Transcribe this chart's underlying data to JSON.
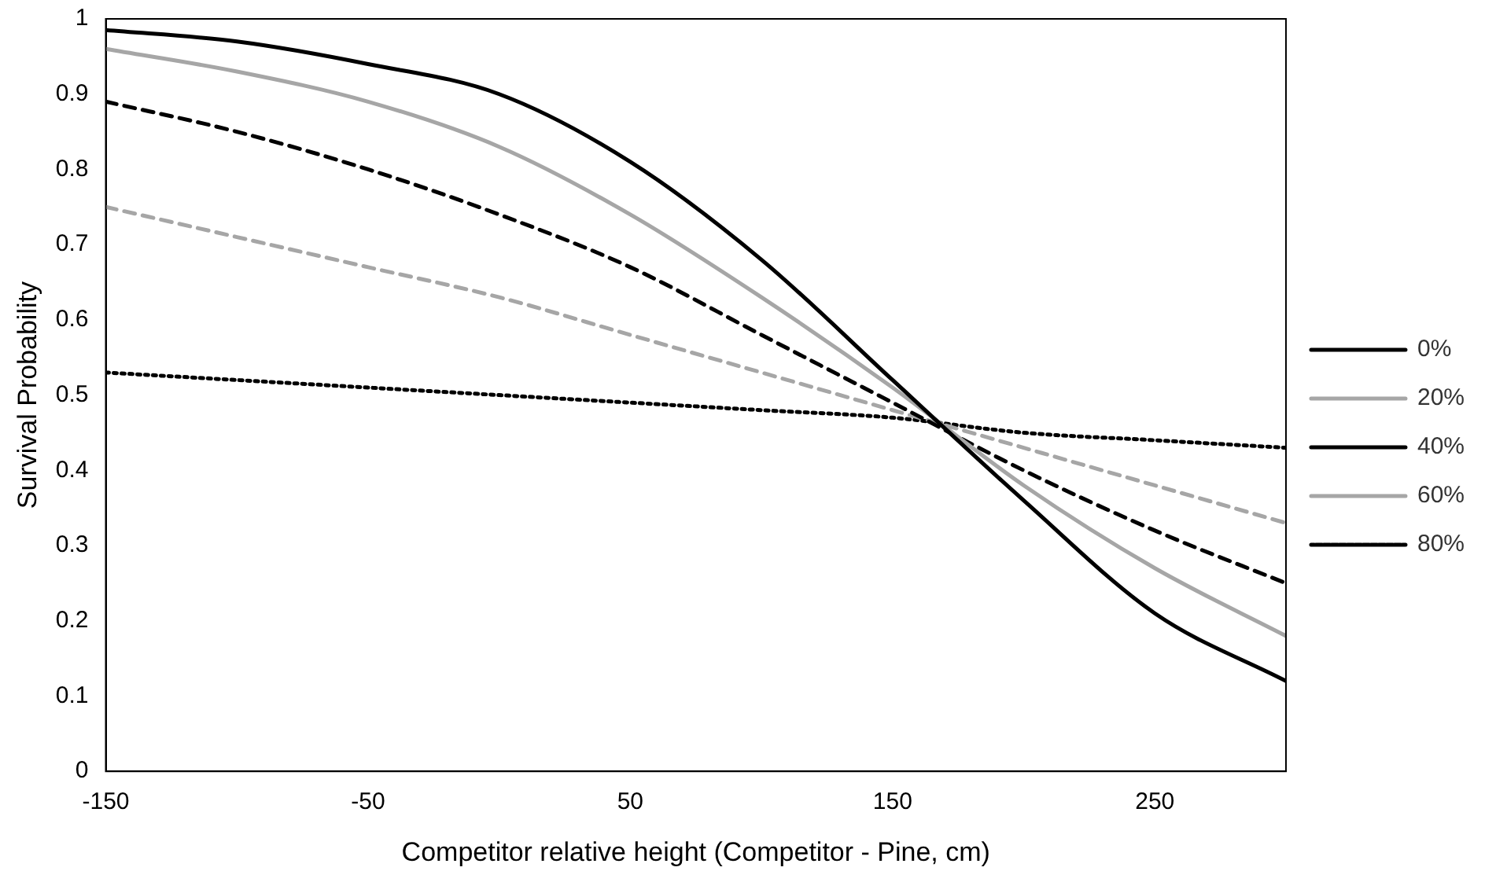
{
  "chart_data": {
    "type": "line",
    "xlabel": "Competitor relative height (Competitor - Pine, cm)",
    "ylabel": "Survival Probability",
    "x": [
      -150,
      -100,
      -50,
      0,
      50,
      100,
      150,
      200,
      250,
      300
    ],
    "xlim": [
      -150,
      300
    ],
    "xticks": [
      -150,
      -50,
      50,
      150,
      250
    ],
    "ylim": [
      0,
      1
    ],
    "yticks": [
      0,
      0.1,
      0.2,
      0.3,
      0.4,
      0.5,
      0.6,
      0.7,
      0.8,
      0.9,
      1
    ],
    "grid": false,
    "legend": "right",
    "marker": "none",
    "series": [
      {
        "name": "0%",
        "color": "#000000",
        "line_style": "solid",
        "values": [
          0.985,
          0.97,
          0.94,
          0.9,
          0.81,
          0.68,
          0.52,
          0.36,
          0.21,
          0.12
        ]
      },
      {
        "name": "20%",
        "color": "#a6a6a6",
        "line_style": "solid",
        "values": [
          0.96,
          0.93,
          0.89,
          0.83,
          0.74,
          0.63,
          0.51,
          0.38,
          0.27,
          0.18
        ]
      },
      {
        "name": "40%",
        "color": "#000000",
        "line_style": "dashed",
        "values": [
          0.89,
          0.85,
          0.8,
          0.74,
          0.67,
          0.58,
          0.49,
          0.4,
          0.32,
          0.25
        ]
      },
      {
        "name": "60%",
        "color": "#a6a6a6",
        "line_style": "dashed",
        "values": [
          0.75,
          0.71,
          0.67,
          0.63,
          0.58,
          0.53,
          0.48,
          0.43,
          0.38,
          0.33
        ]
      },
      {
        "name": "80%",
        "color": "#000000",
        "line_style": "dotted",
        "values": [
          0.53,
          0.52,
          0.51,
          0.5,
          0.49,
          0.48,
          0.47,
          0.45,
          0.44,
          0.43
        ]
      }
    ]
  }
}
